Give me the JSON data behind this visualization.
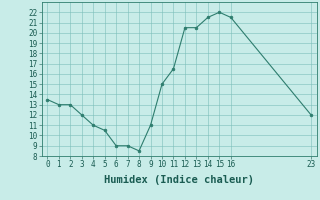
{
  "x": [
    0,
    1,
    2,
    3,
    4,
    5,
    6,
    7,
    8,
    9,
    10,
    11,
    12,
    13,
    14,
    15,
    16,
    23
  ],
  "y": [
    13.5,
    13,
    13,
    12,
    11,
    10.5,
    9,
    9,
    8.5,
    11,
    15,
    16.5,
    20.5,
    20.5,
    21.5,
    22,
    21.5,
    12
  ],
  "line_color": "#2e7d6e",
  "marker": "o",
  "marker_size": 2,
  "bg_color": "#c8ece8",
  "grid_color": "#7bbfba",
  "xlabel": "Humidex (Indice chaleur)",
  "xlim": [
    -0.5,
    23.5
  ],
  "ylim": [
    8,
    23
  ],
  "yticks": [
    8,
    9,
    10,
    11,
    12,
    13,
    14,
    15,
    16,
    17,
    18,
    19,
    20,
    21,
    22
  ],
  "xticks": [
    0,
    1,
    2,
    3,
    4,
    5,
    6,
    7,
    8,
    9,
    10,
    11,
    12,
    13,
    14,
    15,
    16,
    23
  ],
  "xtick_labels": [
    "0",
    "1",
    "2",
    "3",
    "4",
    "5",
    "6",
    "7",
    "8",
    "9",
    "10",
    "11",
    "12",
    "13",
    "14",
    "15",
    "16",
    "23"
  ],
  "font_color": "#1a5c52",
  "axes_color": "#2e7d6e",
  "tick_fontsize": 5.5,
  "label_fontsize": 7.5,
  "linewidth": 0.8
}
